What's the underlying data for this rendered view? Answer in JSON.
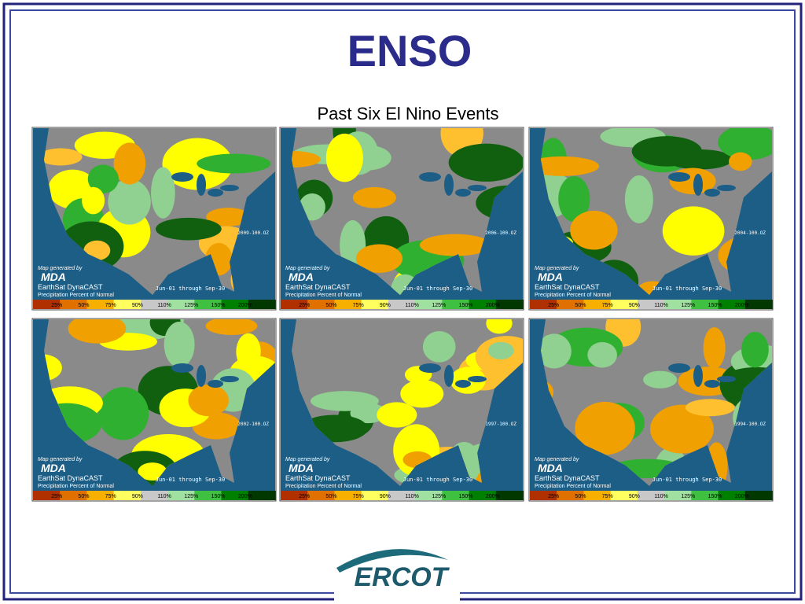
{
  "header": {
    "title": "ENSO",
    "subtitle": "Past Six El Nino Events"
  },
  "maps": [
    {
      "label": "2009-100.OZ"
    },
    {
      "label": "2006-100.OZ"
    },
    {
      "label": "2004-100.OZ"
    },
    {
      "label": "2002-100.OZ"
    },
    {
      "label": "1997-100.OZ"
    },
    {
      "label": "1994-100.OZ"
    }
  ],
  "map_text": {
    "credit": "Map generated by",
    "brand": "MDA",
    "product": "EarthSat DynaCAST",
    "measure": "Precipitation Percent of Normal",
    "period": "Jun-01 through Sep-30",
    "legend": [
      "25%",
      "50%",
      "75%",
      "90%",
      "110%",
      "125%",
      "150%",
      "200%"
    ]
  },
  "footer": {
    "logo": "ERCOT"
  }
}
